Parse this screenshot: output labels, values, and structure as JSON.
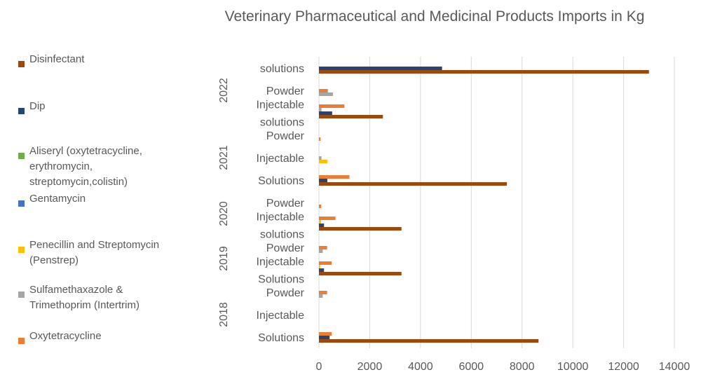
{
  "chart_data": {
    "type": "bar",
    "orientation": "horizontal",
    "title": "Veterinary Pharmaceutical and Medicinal Products Imports in Kg",
    "xlim": [
      0,
      14000
    ],
    "xticks": [
      0,
      2000,
      4000,
      6000,
      8000,
      10000,
      12000,
      14000
    ],
    "grid": "vertical",
    "legend_position": "left",
    "groups": [
      {
        "year": "2018",
        "categories": [
          {
            "label": "Solutions",
            "label_lines": [
              "Solutions"
            ],
            "values": {
              "Disinfectant": 8650,
              "Dip": 420,
              "Oxytetracycline": 500
            }
          },
          {
            "label": "Injectable",
            "label_lines": [
              "Injectable"
            ],
            "values": {}
          },
          {
            "label": "Powder",
            "label_lines": [
              "Powder"
            ],
            "values": {
              "Sulfamethaxazole & Trimethoprim (Intertrim)": 150,
              "Oxytetracycline": 320
            }
          }
        ]
      },
      {
        "year": "2019",
        "categories": [
          {
            "label": "Injectable Solutions",
            "label_lines": [
              "Injectable",
              "Solutions"
            ],
            "values": {
              "Disinfectant": 3250,
              "Dip": 200,
              "Penecillin and Streptomycin (Penstrep)": 50,
              "Oxytetracycline": 500
            }
          },
          {
            "label": "Powder",
            "label_lines": [
              "Powder"
            ],
            "values": {
              "Sulfamethaxazole & Trimethoprim (Intertrim)": 150,
              "Oxytetracycline": 320
            }
          }
        ]
      },
      {
        "year": "2020",
        "categories": [
          {
            "label": "Injectable solutions",
            "label_lines": [
              "Injectable",
              "solutions"
            ],
            "values": {
              "Disinfectant": 3250,
              "Dip": 200,
              "Penecillin and Streptomycin (Penstrep)": 80,
              "Oxytetracycline": 650
            }
          },
          {
            "label": "Powder",
            "label_lines": [
              "Powder"
            ],
            "values": {
              "Oxytetracycline": 90
            }
          }
        ]
      },
      {
        "year": "2021",
        "categories": [
          {
            "label": "Solutions",
            "label_lines": [
              "Solutions"
            ],
            "values": {
              "Disinfectant": 7400,
              "Dip": 330,
              "Oxytetracycline": 1200
            }
          },
          {
            "label": "Injectable",
            "label_lines": [
              "Injectable"
            ],
            "values": {
              "Penecillin and Streptomycin (Penstrep)": 330,
              "Sulfamethaxazole & Trimethoprim (Intertrim)": 100
            }
          },
          {
            "label": "Powder",
            "label_lines": [
              "Powder"
            ],
            "values": {
              "Oxytetracycline": 60
            }
          }
        ]
      },
      {
        "year": "2022",
        "categories": [
          {
            "label": "Injectable solutions",
            "label_lines": [
              "Injectable",
              "solutions"
            ],
            "values": {
              "Disinfectant": 2520,
              "Dip": 520,
              "Sulfamethaxazole & Trimethoprim (Intertrim)": 100,
              "Oxytetracycline": 1000
            }
          },
          {
            "label": "Powder",
            "label_lines": [
              "Powder"
            ],
            "values": {
              "Sulfamethaxazole & Trimethoprim (Intertrim)": 550,
              "Oxytetracycline": 350
            }
          },
          {
            "label": "solutions",
            "label_lines": [
              "solutions"
            ],
            "values": {
              "Disinfectant": 13000,
              "Dip": 4850
            }
          }
        ]
      }
    ],
    "series": [
      {
        "name": "Disinfectant",
        "label": "Disinfectant",
        "color": "#9E480E"
      },
      {
        "name": "Dip",
        "label": "Dip",
        "color": "#264478"
      },
      {
        "name": "Aliseryl (oxytetracycline, erythromycin, streptomycin,colistin)",
        "label": "Aliseryl (oxytetracycline,\nerythromycin,\nstreptomycin,colistin)",
        "color": "#70AD47"
      },
      {
        "name": "Gentamycin",
        "label": "Gentamycin",
        "color": "#4472C4"
      },
      {
        "name": "Penecillin and Streptomycin (Penstrep)",
        "label": "Penecillin and Streptomycin\n(Penstrep)",
        "color": "#FFC000"
      },
      {
        "name": "Sulfamethaxazole & Trimethoprim (Intertrim)",
        "label": "Sulfamethaxazole &\nTrimethoprim (Intertrim)",
        "color": "#A5A5A5"
      },
      {
        "name": "Oxytetracycline",
        "label": "Oxytetracycline",
        "color": "#ED7D31"
      }
    ]
  }
}
